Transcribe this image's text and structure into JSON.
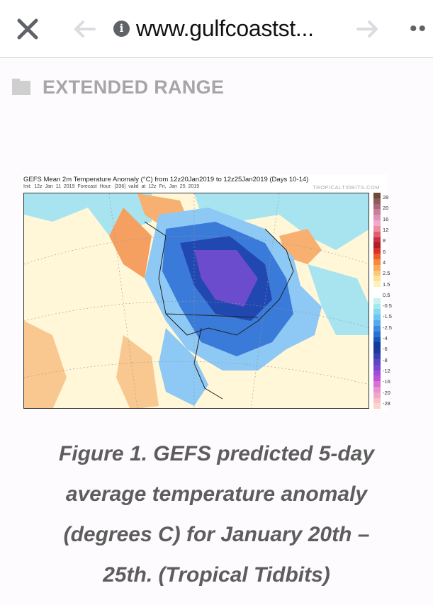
{
  "browser": {
    "url": "www.gulfcoastst...",
    "close_icon": "close-icon",
    "back_icon": "arrow-left-icon",
    "info_icon": "info-icon",
    "forward_icon": "arrow-right-icon",
    "more_icon": "more-icon"
  },
  "category": {
    "label": "EXTENDED RANGE",
    "icon": "folder-icon"
  },
  "figure": {
    "title": "GEFS Mean 2m Temperature Anomaly (°C) from 12z20Jan2019 to 12z25Jan2019 (Days 10-14)",
    "subtitle": "Init: 12z Jan 11 2019   Forecast Hour: [336]   valid at 12z Fri, Jan 25 2019",
    "brand": "TROPICALTIDBITS.COM",
    "colorbar_labels": [
      "28",
      "20",
      "16",
      "12",
      "8",
      "6",
      "4",
      "2.5",
      "1.5",
      "0.5",
      "-0.5",
      "-1.5",
      "-2.5",
      "-4",
      "-6",
      "-8",
      "-12",
      "-16",
      "-20",
      "-28"
    ],
    "colorbar_colors": [
      "#6b4a3a",
      "#8e5a5a",
      "#a86a7a",
      "#c77f9a",
      "#de92b8",
      "#f0a8cc",
      "#ef8aa0",
      "#e06070",
      "#c83040",
      "#b01c28",
      "#d83028",
      "#f05a30",
      "#f8883a",
      "#fcaa58",
      "#fcc878",
      "#fde29a",
      "#fff2b8",
      "#ffffff",
      "#ffffff",
      "#c8f2f2",
      "#a4e8ee",
      "#86d8ee",
      "#6cc4f0",
      "#56aaec",
      "#3e8ce0",
      "#2a70d0",
      "#1a54b8",
      "#103c9c",
      "#1c3a9c",
      "#3a40b0",
      "#5a46c4",
      "#7a48d0",
      "#9c4cd8",
      "#c050d8",
      "#d870d8",
      "#e890d0",
      "#f0a8c8",
      "#f8c0c8",
      "#fcd4c8"
    ]
  },
  "caption": {
    "lines": [
      "Figure 1. GEFS predicted 5-day",
      "average temperature anomaly",
      "(degrees C) for January 20th –",
      "25th. (Tropical Tidbits)"
    ]
  }
}
